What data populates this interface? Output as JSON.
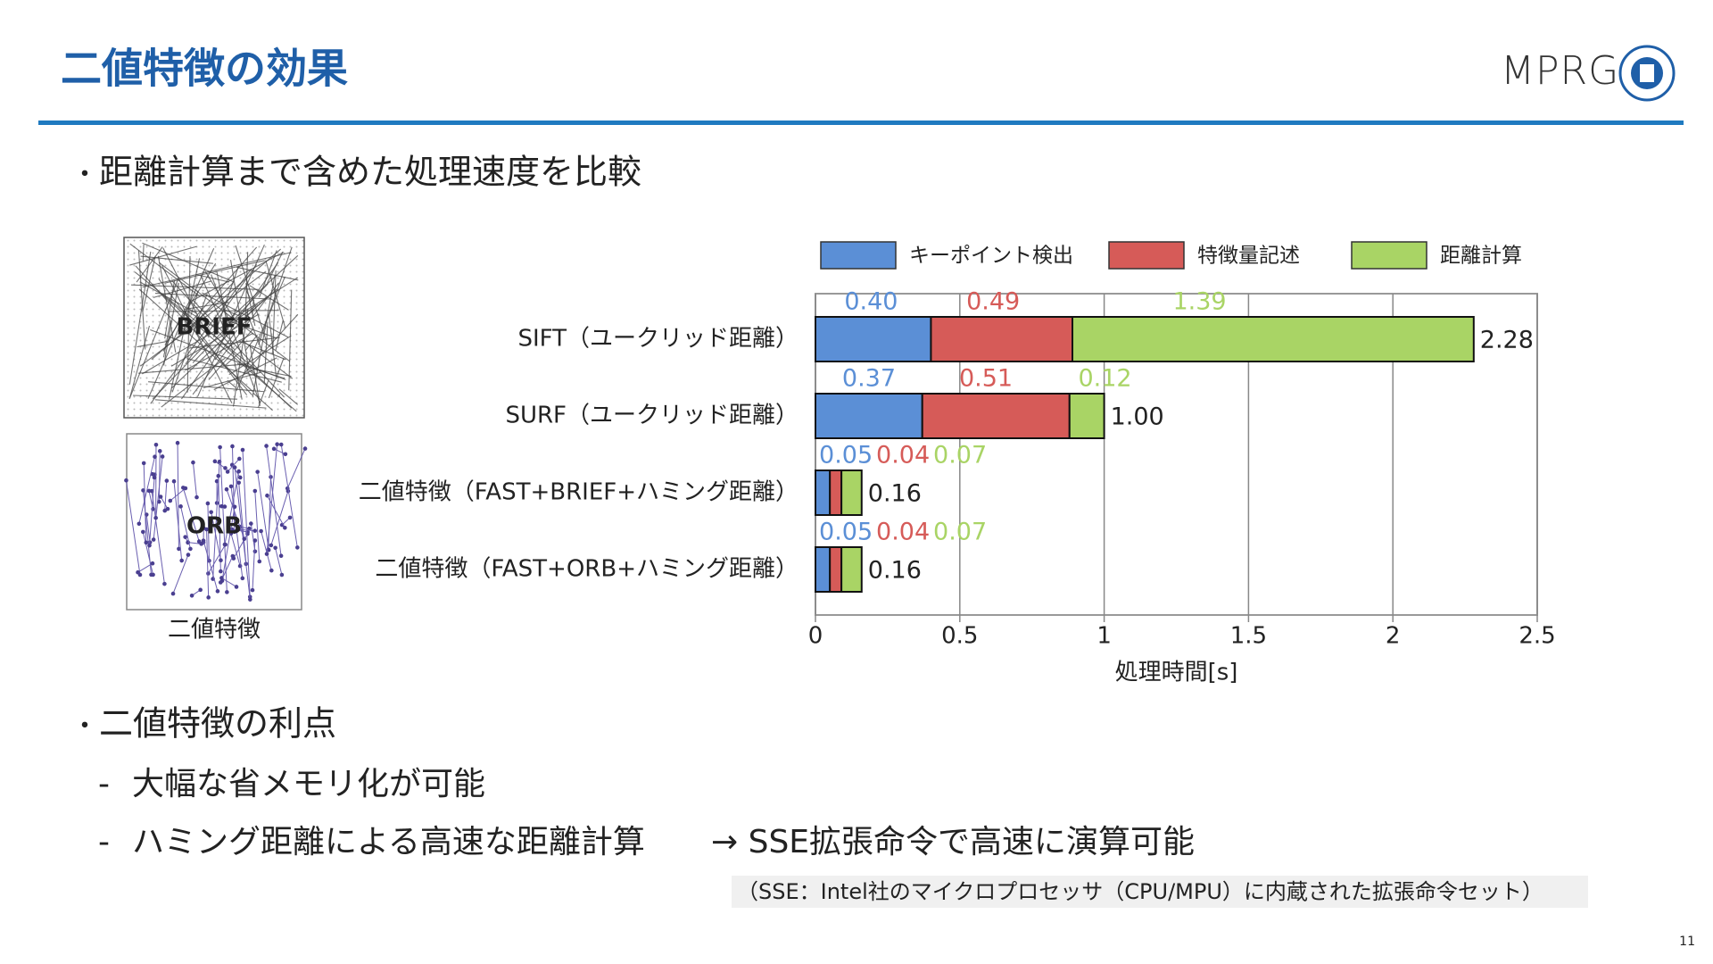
{
  "header": {
    "title": "二値特徴の効果",
    "logo": "MPRG"
  },
  "bullets": [
    {
      "text": "距離計算まで含めた処理速度を比較"
    },
    {
      "text": "二値特徴の利点",
      "items": [
        "大幅な省メモリ化が可能",
        "ハミング距離による高速な距離計算"
      ],
      "arrow_note": "→ SSE拡張命令で高速に演算可能"
    }
  ],
  "footnote": "（SSE：Intel社のマイクロプロセッサ（CPU/MPU）に内蔵された拡張命令セット）",
  "figure": {
    "brief_label": "BRIEF",
    "orb_label": "ORB",
    "caption": "二値特徴"
  },
  "page_number": "11",
  "chart_data": {
    "type": "stacked-bar-horizontal",
    "categories": [
      "SIFT（ユークリッド距離）",
      "SURF（ユークリッド距離）",
      "二値特徴（FAST+BRIEF+ハミング距離）",
      "二値特徴（FAST+ORB+ハミング距離）"
    ],
    "series": [
      {
        "name": "キーポイント検出",
        "color": "#5b8fd6",
        "values": [
          0.4,
          0.37,
          0.05,
          0.05
        ],
        "value_labels": [
          "0.40",
          "0.37",
          "0.05",
          "0.05"
        ]
      },
      {
        "name": "特徴量記述",
        "color": "#d65b58",
        "values": [
          0.49,
          0.51,
          0.04,
          0.04
        ],
        "value_labels": [
          "0.49",
          "0.51",
          "0.04",
          "0.04"
        ]
      },
      {
        "name": "距離計算",
        "color": "#a9d465",
        "values": [
          1.39,
          0.12,
          0.07,
          0.07
        ],
        "value_labels": [
          "1.39",
          "0.12",
          "0.07",
          "0.07"
        ]
      }
    ],
    "totals": [
      2.28,
      1.0,
      0.16,
      0.16
    ],
    "total_labels": [
      "2.28",
      "1.00",
      "0.16",
      "0.16"
    ],
    "xlabel": "処理時間[s]",
    "xlim": [
      0,
      2.5
    ],
    "xticks": [
      0,
      0.5,
      1,
      1.5,
      2,
      2.5
    ],
    "grid": true,
    "legend": "top"
  }
}
